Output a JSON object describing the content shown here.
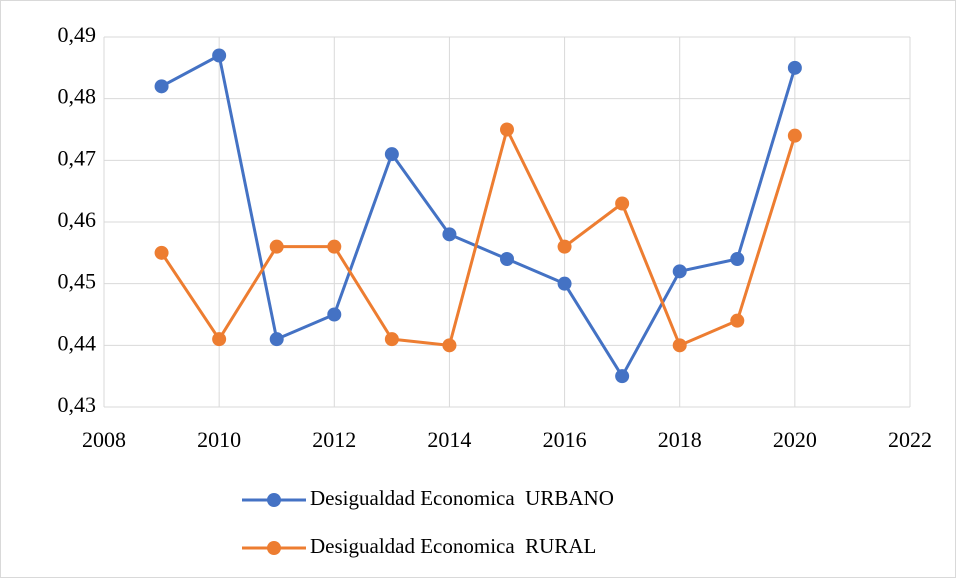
{
  "chart_data": {
    "type": "line",
    "x": [
      2009,
      2010,
      2011,
      2012,
      2013,
      2014,
      2015,
      2016,
      2017,
      2018,
      2019,
      2020
    ],
    "series": [
      {
        "name": "Desigualdad Economica  URBANO",
        "color": "#4472c4",
        "values": [
          0.482,
          0.487,
          0.441,
          0.445,
          0.471,
          0.458,
          0.454,
          0.45,
          0.435,
          0.452,
          0.454,
          0.485
        ]
      },
      {
        "name": "Desigualdad Economica  RURAL",
        "color": "#ed7d31",
        "values": [
          0.455,
          0.441,
          0.456,
          0.456,
          0.441,
          0.44,
          0.475,
          0.456,
          0.463,
          0.44,
          0.444,
          0.474
        ]
      }
    ],
    "xlim": [
      2008,
      2022
    ],
    "xticks": [
      2008,
      2010,
      2012,
      2014,
      2016,
      2018,
      2020,
      2022
    ],
    "ylim": [
      0.43,
      0.49
    ],
    "yticks": [
      {
        "value": 0.43,
        "label": "0,43"
      },
      {
        "value": 0.44,
        "label": "0,44"
      },
      {
        "value": 0.45,
        "label": "0,45"
      },
      {
        "value": 0.46,
        "label": "0,46"
      },
      {
        "value": 0.47,
        "label": "0,47"
      },
      {
        "value": 0.48,
        "label": "0,48"
      },
      {
        "value": 0.49,
        "label": "0,49"
      }
    ],
    "grid": true,
    "legend": "bottom"
  }
}
